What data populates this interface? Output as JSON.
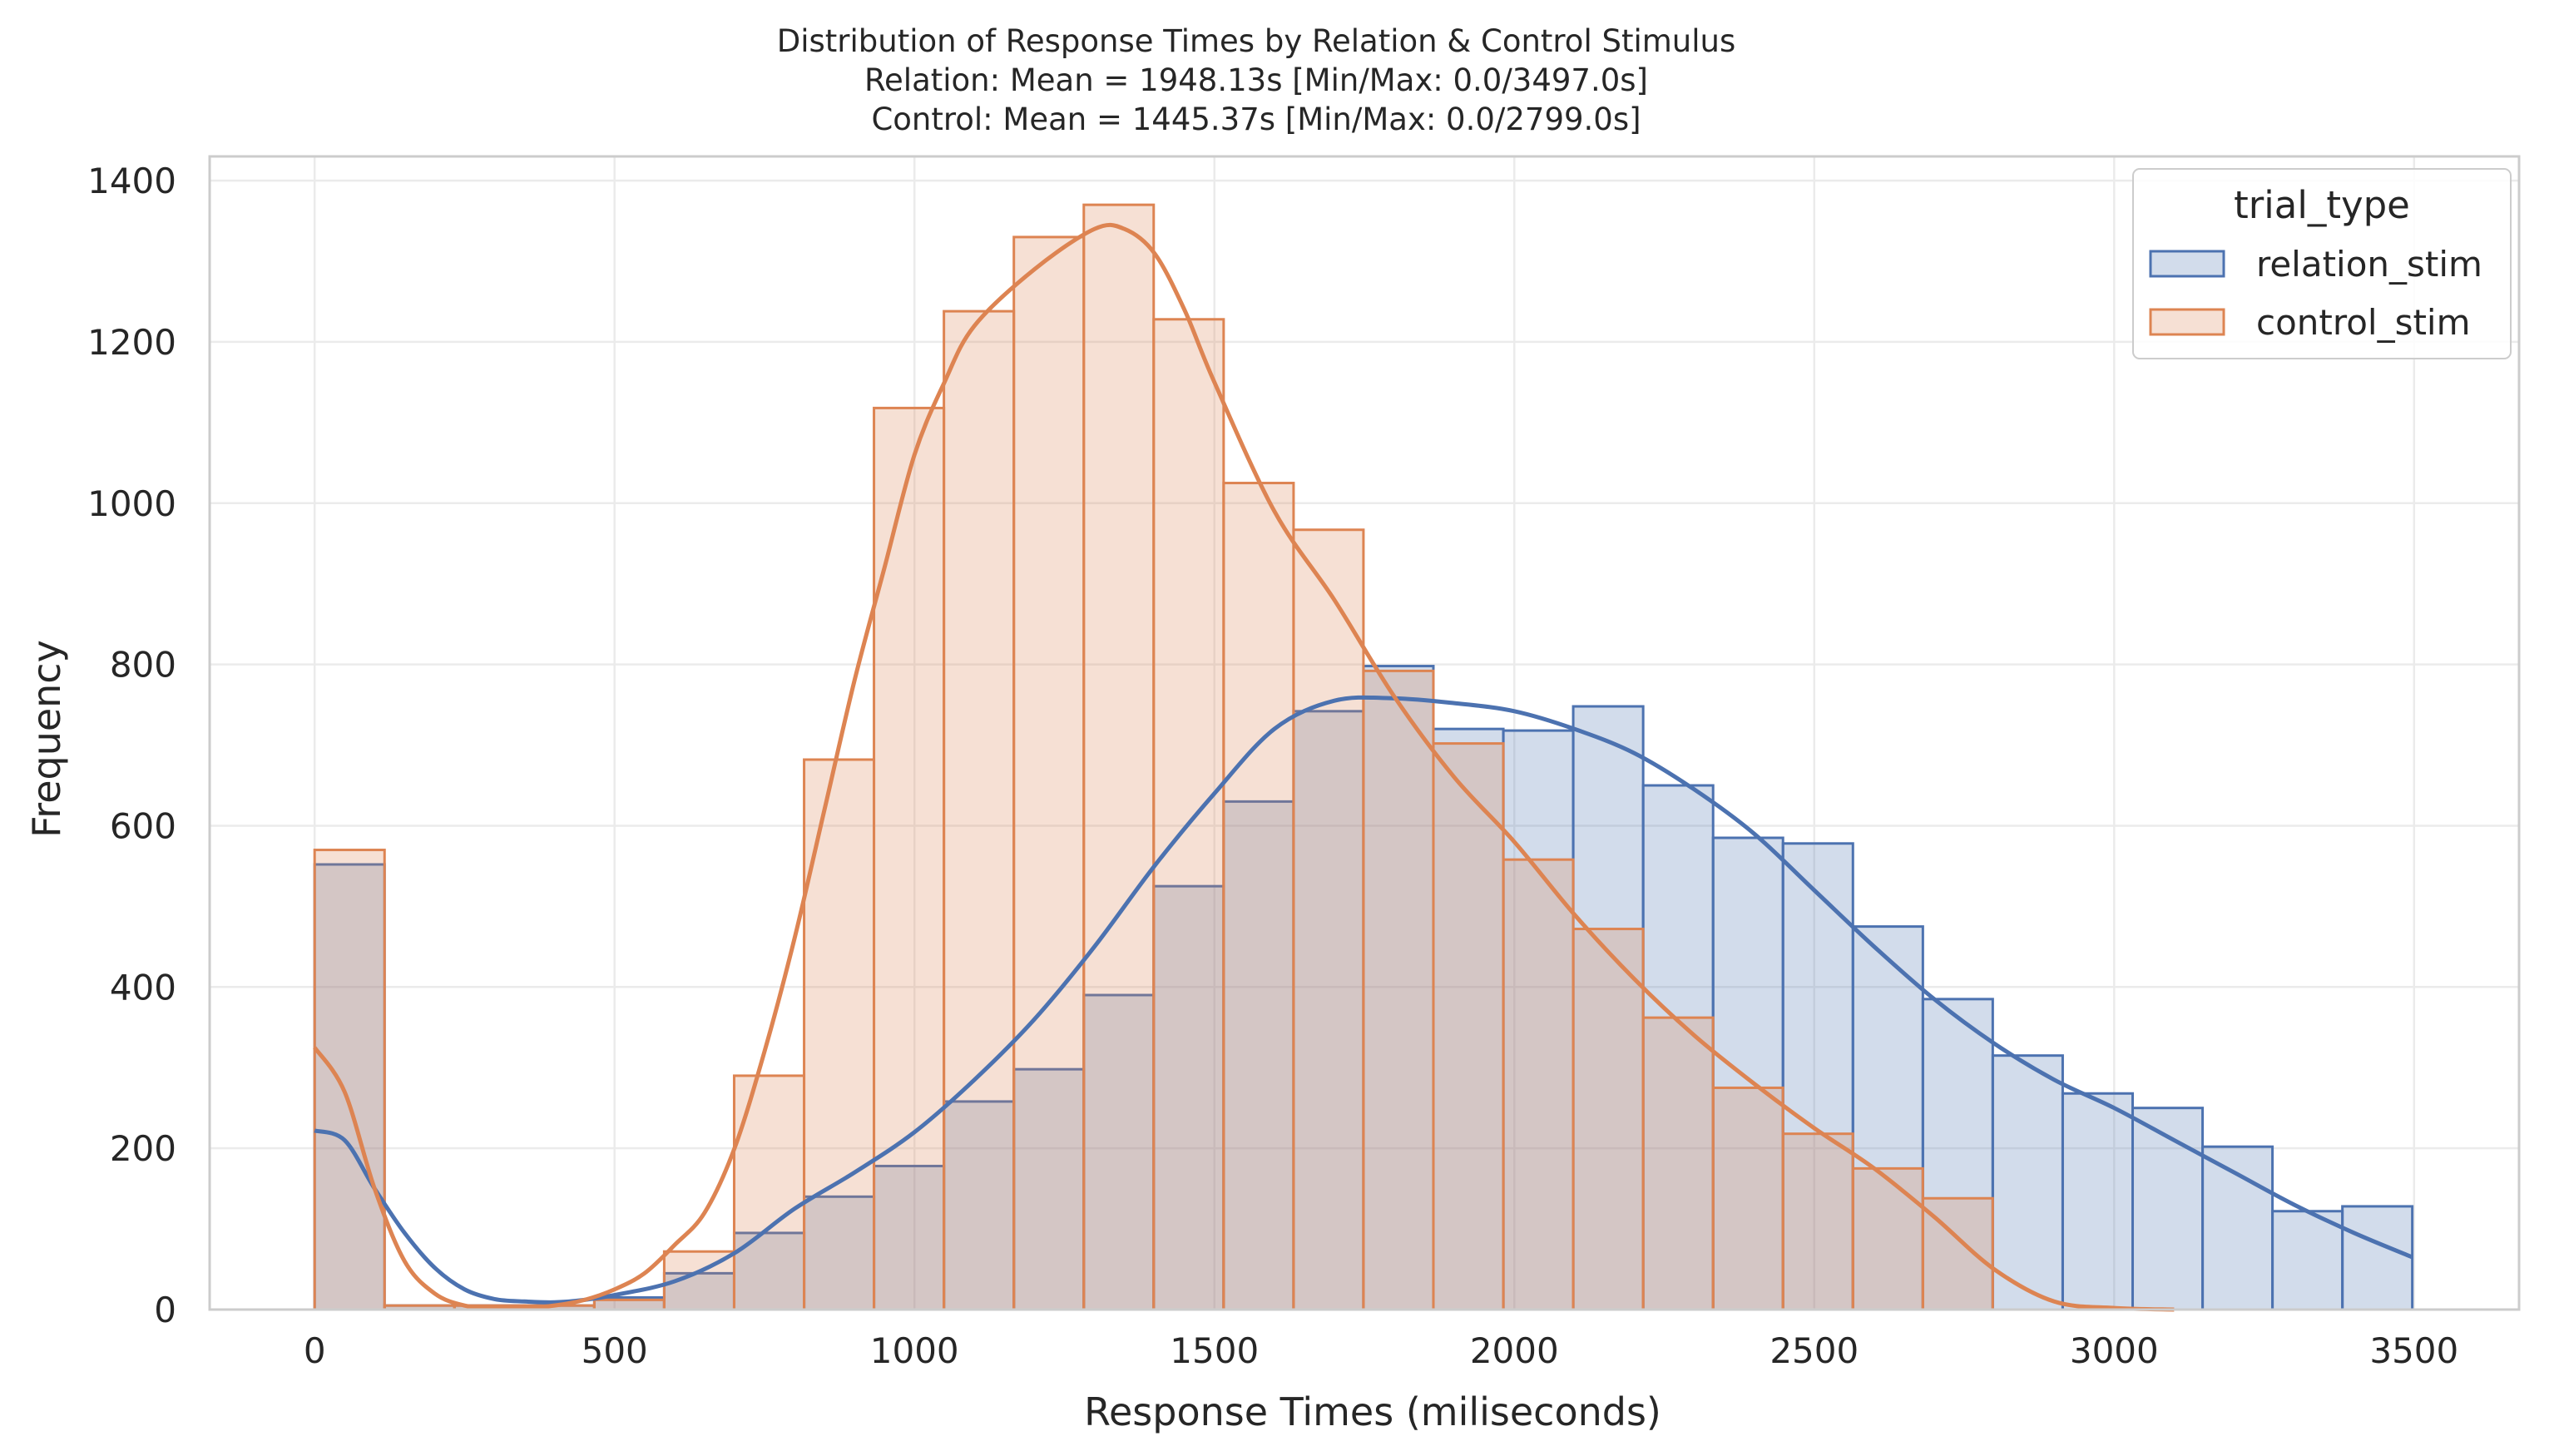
{
  "chart_data": {
    "type": "histogram",
    "title": [
      "Distribution of Response Times by Relation & Control Stimulus",
      "Relation: Mean = 1948.13s [Min/Max: 0.0/3497.0s]",
      "Control: Mean = 1445.37s [Min/Max: 0.0/2799.0s]"
    ],
    "xlabel": "Response Times (miliseconds)",
    "ylabel": "Frequency",
    "xlim": [
      -175,
      3675
    ],
    "ylim": [
      0,
      1430
    ],
    "xticks": [
      0,
      500,
      1000,
      1500,
      2000,
      2500,
      3000,
      3500
    ],
    "yticks": [
      0,
      200,
      400,
      600,
      800,
      1000,
      1200,
      1400
    ],
    "grid": true,
    "bin_width": 116.57,
    "legend": {
      "title": "trial_type",
      "placement": "top-right"
    },
    "series": [
      {
        "name": "relation_stim",
        "color": "#4c72b0",
        "fill_opacity": 0.25,
        "bin_edges": [
          0,
          116.6,
          233.1,
          349.7,
          466.3,
          582.8,
          699.4,
          816.0,
          932.5,
          1049.1,
          1165.7,
          1282.3,
          1398.8,
          1515.4,
          1632.0,
          1748.5,
          1865.1,
          1981.7,
          2098.2,
          2214.8,
          2331.4,
          2447.9,
          2564.5,
          2681.1,
          2797.6,
          2914.2,
          3030.8,
          3147.4,
          3263.9,
          3380.5,
          3497.0
        ],
        "counts": [
          552,
          5,
          5,
          5,
          15,
          45,
          95,
          140,
          178,
          258,
          298,
          390,
          525,
          630,
          742,
          798,
          720,
          718,
          748,
          650,
          585,
          578,
          475,
          385,
          315,
          268,
          250,
          202,
          122,
          128
        ],
        "kde_x": [
          0,
          50,
          100,
          150,
          200,
          250,
          300,
          350,
          400,
          450,
          500,
          600,
          700,
          800,
          900,
          1000,
          1100,
          1200,
          1300,
          1400,
          1500,
          1600,
          1700,
          1800,
          1900,
          2000,
          2100,
          2200,
          2300,
          2400,
          2500,
          2600,
          2700,
          2800,
          2900,
          3000,
          3100,
          3200,
          3300,
          3400,
          3497
        ],
        "kde_y": [
          222,
          210,
          150,
          95,
          52,
          25,
          13,
          10,
          9,
          12,
          18,
          35,
          70,
          125,
          170,
          220,
          285,
          360,
          450,
          550,
          640,
          720,
          755,
          758,
          752,
          742,
          720,
          690,
          645,
          590,
          520,
          450,
          385,
          330,
          285,
          250,
          210,
          170,
          130,
          95,
          65
        ]
      },
      {
        "name": "control_stim",
        "color": "#dd8452",
        "fill_opacity": 0.25,
        "bin_edges": [
          0,
          116.6,
          233.1,
          349.7,
          466.3,
          582.8,
          699.4,
          816.0,
          932.5,
          1049.1,
          1165.7,
          1282.3,
          1398.8,
          1515.4,
          1632.0,
          1748.5,
          1865.1,
          1981.7,
          2098.2,
          2214.8,
          2331.4,
          2447.9,
          2564.5,
          2681.1,
          2797.6
        ],
        "counts": [
          570,
          5,
          5,
          5,
          12,
          72,
          290,
          682,
          1118,
          1238,
          1330,
          1370,
          1228,
          1025,
          967,
          792,
          702,
          558,
          472,
          362,
          275,
          218,
          175,
          138
        ],
        "kde_x": [
          0,
          50,
          100,
          150,
          200,
          250,
          300,
          350,
          400,
          450,
          500,
          550,
          600,
          650,
          700,
          750,
          800,
          850,
          900,
          950,
          1000,
          1050,
          1100,
          1200,
          1300,
          1350,
          1400,
          1450,
          1500,
          1600,
          1700,
          1800,
          1900,
          2000,
          2100,
          2200,
          2300,
          2400,
          2500,
          2600,
          2700,
          2800,
          2900,
          3000,
          3100
        ],
        "kde_y": [
          325,
          270,
          150,
          60,
          20,
          5,
          2,
          2,
          5,
          12,
          25,
          45,
          80,
          120,
          200,
          320,
          460,
          620,
          780,
          920,
          1060,
          1150,
          1220,
          1290,
          1340,
          1340,
          1310,
          1240,
          1150,
          990,
          880,
          760,
          660,
          580,
          490,
          410,
          340,
          280,
          225,
          175,
          115,
          50,
          10,
          2,
          0
        ]
      }
    ]
  }
}
